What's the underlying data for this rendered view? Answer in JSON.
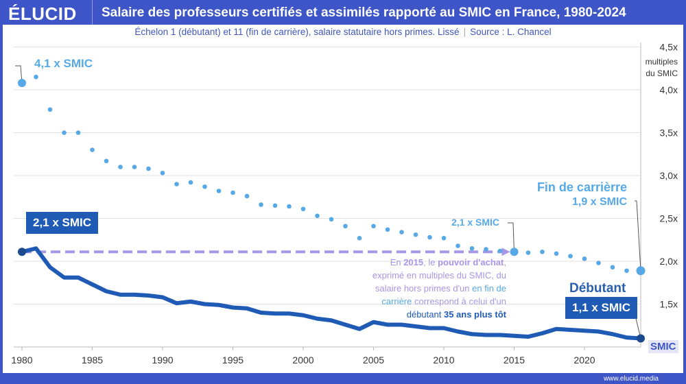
{
  "header": {
    "logo": "ÉLUCID",
    "title": "Salaire des professeurs certifiés et assimilés rapporté au SMIC en France, 1980-2024"
  },
  "subtitle": {
    "text": "Échelon 1 (débutant) et 11 (fin de carrière), salaire statutaire hors primes. Lissé",
    "source": "Source : L. Chancel"
  },
  "footer": {
    "url": "www.elucid.media"
  },
  "annotations": {
    "start_fin": "4,1 x SMIC",
    "start_debut": "2,1 x SMIC",
    "mid_fin": "2,1 x SMIC",
    "end_fin_title": "Fin de carrièrre",
    "end_fin_value": "1,9 x SMIC",
    "end_debut_title": "Débutant",
    "end_debut_value": "1,1 x SMIC",
    "smic": "SMIC",
    "note": {
      "p1": "En ",
      "y": "2015",
      "p2": ", le ",
      "pa": "pouvoir d'achat",
      "p3": ", exprimé en multiples du SMIC, du salaire hors primes d'un ",
      "fin": "en fin de carrière",
      "p4": " correspond à celui d'un ",
      "deb": "débutant",
      "p5": " ",
      "ans": "35 ans plus tôt"
    }
  },
  "colors": {
    "fin": "#56a9e6",
    "debut": "#1f5bb5",
    "arrow": "#a897e8",
    "brand": "#3d55c6"
  },
  "chart_data": {
    "type": "line",
    "xlabel": "",
    "ylabel": "multiples du SMIC",
    "xlim": [
      1980,
      2024
    ],
    "ylim": [
      1.0,
      4.5
    ],
    "x_ticks": [
      "1980",
      "1985",
      "1990",
      "1995",
      "2000",
      "2005",
      "2010",
      "2015",
      "2020"
    ],
    "y_ticks": [
      "1,5x",
      "2,0x",
      "2,5x",
      "3,0x",
      "3,5x",
      "4,0x",
      "4,5x"
    ],
    "y_axis_title": [
      "multiples",
      "du SMIC"
    ],
    "grid": true,
    "x": [
      1980,
      1981,
      1982,
      1983,
      1984,
      1985,
      1986,
      1987,
      1988,
      1989,
      1990,
      1991,
      1992,
      1993,
      1994,
      1995,
      1996,
      1997,
      1998,
      1999,
      2000,
      2001,
      2002,
      2003,
      2004,
      2005,
      2006,
      2007,
      2008,
      2009,
      2010,
      2011,
      2012,
      2013,
      2014,
      2015,
      2016,
      2017,
      2018,
      2019,
      2020,
      2021,
      2022,
      2023,
      2024
    ],
    "series": [
      {
        "name": "Fin de carrièrre",
        "style": "dotted",
        "values": [
          4.08,
          4.15,
          3.77,
          3.5,
          3.5,
          3.3,
          3.17,
          3.1,
          3.1,
          3.08,
          3.03,
          2.9,
          2.92,
          2.87,
          2.82,
          2.8,
          2.76,
          2.66,
          2.65,
          2.64,
          2.61,
          2.53,
          2.49,
          2.41,
          2.27,
          2.41,
          2.37,
          2.34,
          2.31,
          2.28,
          2.27,
          2.18,
          2.15,
          2.14,
          2.12,
          2.11,
          2.1,
          2.11,
          2.09,
          2.06,
          2.03,
          1.98,
          1.93,
          1.89,
          1.89
        ]
      },
      {
        "name": "Débutant",
        "style": "solid",
        "values": [
          2.11,
          2.15,
          1.93,
          1.81,
          1.81,
          1.73,
          1.65,
          1.61,
          1.61,
          1.6,
          1.58,
          1.51,
          1.53,
          1.5,
          1.49,
          1.46,
          1.45,
          1.4,
          1.39,
          1.39,
          1.37,
          1.33,
          1.31,
          1.26,
          1.21,
          1.29,
          1.26,
          1.26,
          1.24,
          1.22,
          1.22,
          1.18,
          1.15,
          1.14,
          1.14,
          1.13,
          1.12,
          1.16,
          1.21,
          1.2,
          1.19,
          1.18,
          1.15,
          1.11,
          1.1
        ]
      }
    ]
  }
}
